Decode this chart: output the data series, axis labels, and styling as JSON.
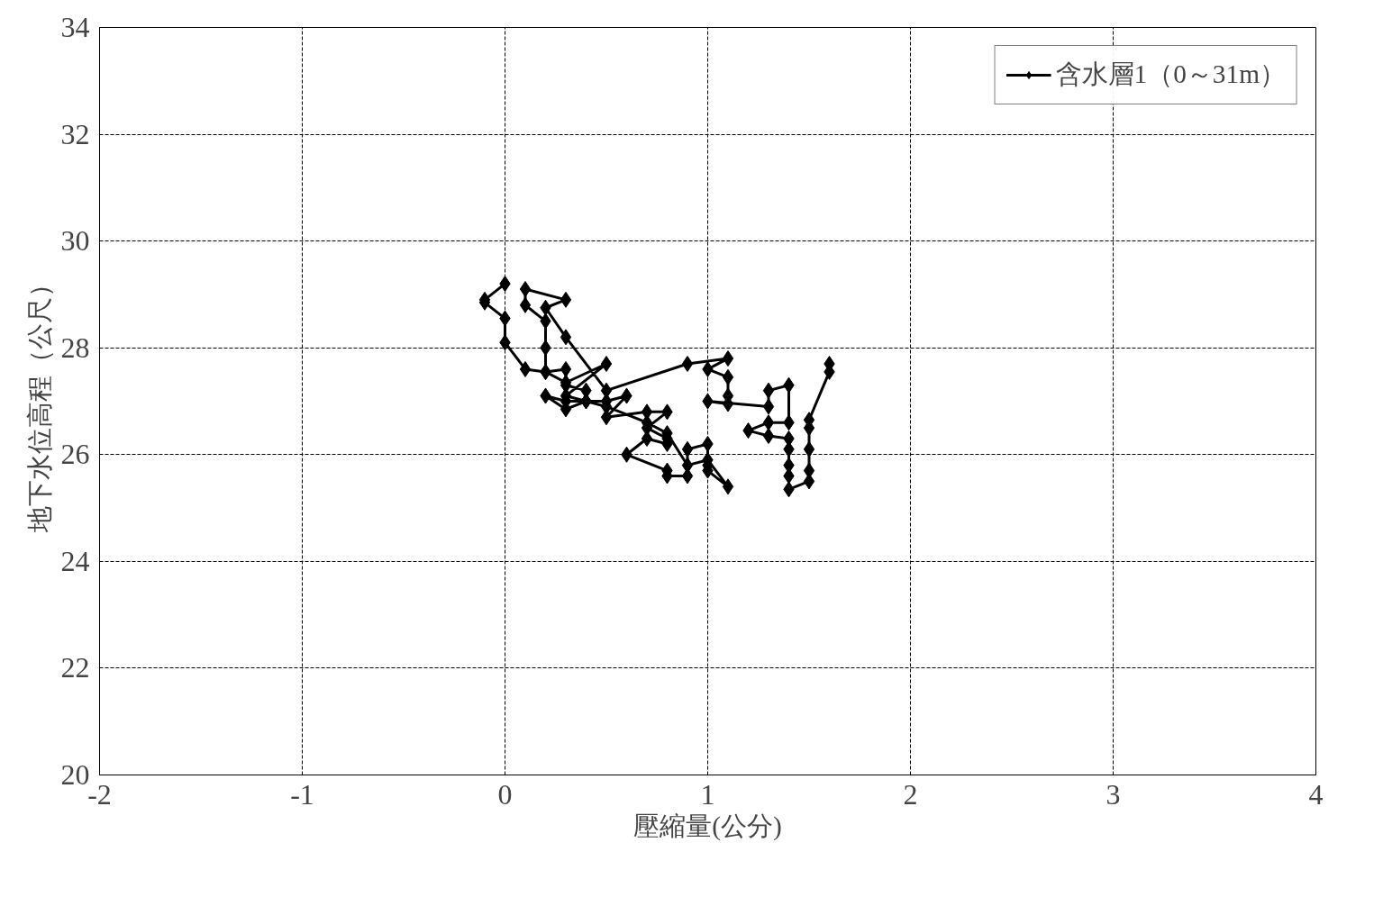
{
  "chart_data": {
    "type": "line",
    "xlabel": "壓縮量(公分)",
    "ylabel": "地下水位高程（公尺）",
    "xlim": [
      -2,
      4
    ],
    "xticks": [
      -2,
      -1,
      0,
      1,
      2,
      3,
      4
    ],
    "ylim": [
      20,
      34
    ],
    "yticks": [
      20,
      22,
      24,
      26,
      28,
      30,
      32,
      34
    ],
    "grid": true,
    "legend": "top right",
    "marker": "diamond",
    "line_style": "solid",
    "series": [
      {
        "name": "含水層1（0～31m）",
        "color": "#000000",
        "x": [
          0,
          -0.1,
          -0.1,
          0,
          0,
          0.1,
          0.2,
          0.3,
          0.3,
          0.4,
          0.4,
          0.3,
          0.2,
          0.3,
          0.5,
          0.6,
          0.5,
          0.7,
          0.8,
          0.7,
          0.8,
          0.8,
          0.7,
          0.6,
          0.8,
          0.8,
          0.9,
          0.9,
          1.0,
          1.0,
          1.0,
          1.1,
          1.0,
          0.9,
          0.8,
          0.7,
          0.5,
          0.4,
          0.3,
          0.5,
          0.3,
          0.2,
          0.2,
          0.2,
          0.1,
          0.1,
          0.3,
          0.2,
          0.3,
          0.5,
          0.9,
          1.1,
          1.0,
          1.1,
          1.1,
          1.1,
          1.0,
          1.3,
          1.3,
          1.4,
          1.4,
          1.3,
          1.2,
          1.3,
          1.4,
          1.4,
          1.4,
          1.4,
          1.4,
          1.5,
          1.5,
          1.5,
          1.5,
          1.5,
          1.6,
          1.6
        ],
        "values": [
          29.2,
          28.9,
          28.85,
          28.55,
          28.1,
          27.6,
          27.55,
          27.6,
          27.3,
          27.2,
          27.0,
          26.85,
          27.1,
          27.0,
          27.0,
          27.1,
          26.7,
          26.8,
          26.8,
          26.5,
          26.3,
          26.2,
          26.3,
          26.0,
          25.7,
          25.6,
          25.6,
          26.1,
          26.2,
          25.8,
          25.7,
          25.4,
          25.9,
          25.8,
          26.4,
          26.6,
          26.9,
          27.0,
          27.1,
          27.7,
          27.35,
          27.55,
          28.0,
          28.5,
          28.8,
          29.1,
          28.9,
          28.75,
          28.2,
          27.2,
          27.7,
          27.8,
          27.6,
          27.45,
          27.1,
          26.95,
          27.0,
          26.9,
          27.2,
          27.3,
          26.6,
          26.6,
          26.45,
          26.35,
          26.3,
          26.1,
          25.8,
          25.6,
          25.35,
          25.5,
          25.7,
          26.1,
          26.5,
          26.65,
          27.55,
          27.7
        ]
      }
    ]
  }
}
